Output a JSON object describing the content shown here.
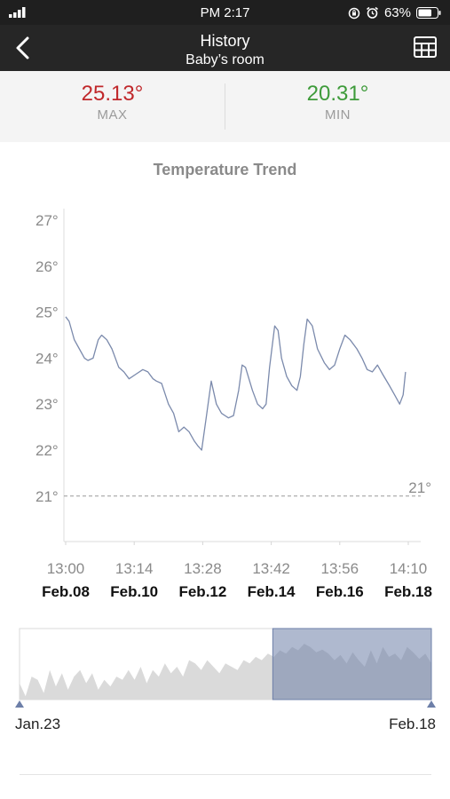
{
  "status_bar": {
    "time": "PM 2:17",
    "battery": "63%"
  },
  "nav": {
    "title": "History",
    "subtitle": "Baby’s room"
  },
  "summary": {
    "max_value": "25.13°",
    "max_label": "MAX",
    "max_color": "#c0282b",
    "min_value": "20.31°",
    "min_label": "MIN",
    "min_color": "#3e9b3a"
  },
  "chart_data": {
    "type": "line",
    "title": "Temperature Trend",
    "ylim": [
      20,
      27.5
    ],
    "y_ticks": [
      "21°",
      "22°",
      "23°",
      "24°",
      "25°",
      "26°",
      "27°"
    ],
    "y_tick_values": [
      21,
      22,
      23,
      24,
      25,
      26,
      27
    ],
    "x_range": [
      0,
      10
    ],
    "x_ticks": [
      {
        "time": "13:00",
        "date": "Feb.08"
      },
      {
        "time": "13:14",
        "date": "Feb.10"
      },
      {
        "time": "13:28",
        "date": "Feb.12"
      },
      {
        "time": "13:42",
        "date": "Feb.14"
      },
      {
        "time": "13:56",
        "date": "Feb.16"
      },
      {
        "time": "14:10",
        "date": "Feb.18"
      }
    ],
    "x_tick_values": [
      0,
      2,
      4,
      6,
      8,
      10
    ],
    "threshold": {
      "value": 21,
      "label": "21°"
    },
    "line_color": "#7b8aac",
    "series": [
      {
        "x": [
          0,
          0.1,
          0.25,
          0.4,
          0.55,
          0.65,
          0.8,
          0.95,
          1.05,
          1.2,
          1.35,
          1.55,
          1.7,
          1.85,
          2.05,
          2.25,
          2.4,
          2.55,
          2.65,
          2.8,
          3.0,
          3.15,
          3.3,
          3.45,
          3.6,
          3.75,
          3.85,
          3.97,
          4.1,
          4.25,
          4.4,
          4.55,
          4.75,
          4.9,
          5.05,
          5.15,
          5.25,
          5.45,
          5.6,
          5.75,
          5.85,
          5.95,
          6.1,
          6.2,
          6.3,
          6.45,
          6.6,
          6.75,
          6.85,
          6.95,
          7.05,
          7.2,
          7.35,
          7.55,
          7.7,
          7.85,
          8.0,
          8.15,
          8.3,
          8.5,
          8.65,
          8.8,
          8.95,
          9.1,
          9.25,
          9.45,
          9.6,
          9.75,
          9.85,
          9.92
        ],
        "y": [
          24.9,
          24.8,
          24.4,
          24.2,
          24.0,
          23.95,
          24.0,
          24.4,
          24.5,
          24.4,
          24.2,
          23.8,
          23.7,
          23.55,
          23.65,
          23.75,
          23.7,
          23.55,
          23.5,
          23.45,
          23.0,
          22.8,
          22.4,
          22.5,
          22.4,
          22.2,
          22.1,
          22.0,
          22.7,
          23.5,
          23.0,
          22.8,
          22.7,
          22.75,
          23.3,
          23.85,
          23.8,
          23.3,
          23.0,
          22.9,
          23.0,
          23.8,
          24.7,
          24.6,
          24.0,
          23.6,
          23.4,
          23.3,
          23.6,
          24.3,
          24.85,
          24.7,
          24.2,
          23.9,
          23.75,
          23.85,
          24.2,
          24.5,
          24.4,
          24.2,
          24.0,
          23.75,
          23.7,
          23.85,
          23.65,
          23.4,
          23.2,
          23.0,
          23.2,
          23.7
        ]
      }
    ]
  },
  "range_selector": {
    "start_label": "Jan.23",
    "end_label": "Feb.18",
    "selected_from": 0.615,
    "selected_to": 1.0,
    "overview_values": [
      0.25,
      0.05,
      0.35,
      0.3,
      0.1,
      0.45,
      0.2,
      0.4,
      0.15,
      0.35,
      0.45,
      0.25,
      0.4,
      0.15,
      0.3,
      0.2,
      0.35,
      0.3,
      0.45,
      0.3,
      0.5,
      0.25,
      0.45,
      0.35,
      0.55,
      0.4,
      0.5,
      0.35,
      0.6,
      0.55,
      0.45,
      0.6,
      0.5,
      0.4,
      0.55,
      0.5,
      0.45,
      0.6,
      0.55,
      0.65,
      0.6,
      0.7,
      0.65,
      0.75,
      0.7,
      0.8,
      0.75,
      0.85,
      0.8,
      0.72,
      0.76,
      0.7,
      0.6,
      0.68,
      0.55,
      0.72,
      0.6,
      0.5,
      0.75,
      0.55,
      0.8,
      0.65,
      0.7,
      0.6,
      0.8,
      0.72,
      0.62,
      0.7,
      0.55
    ]
  }
}
